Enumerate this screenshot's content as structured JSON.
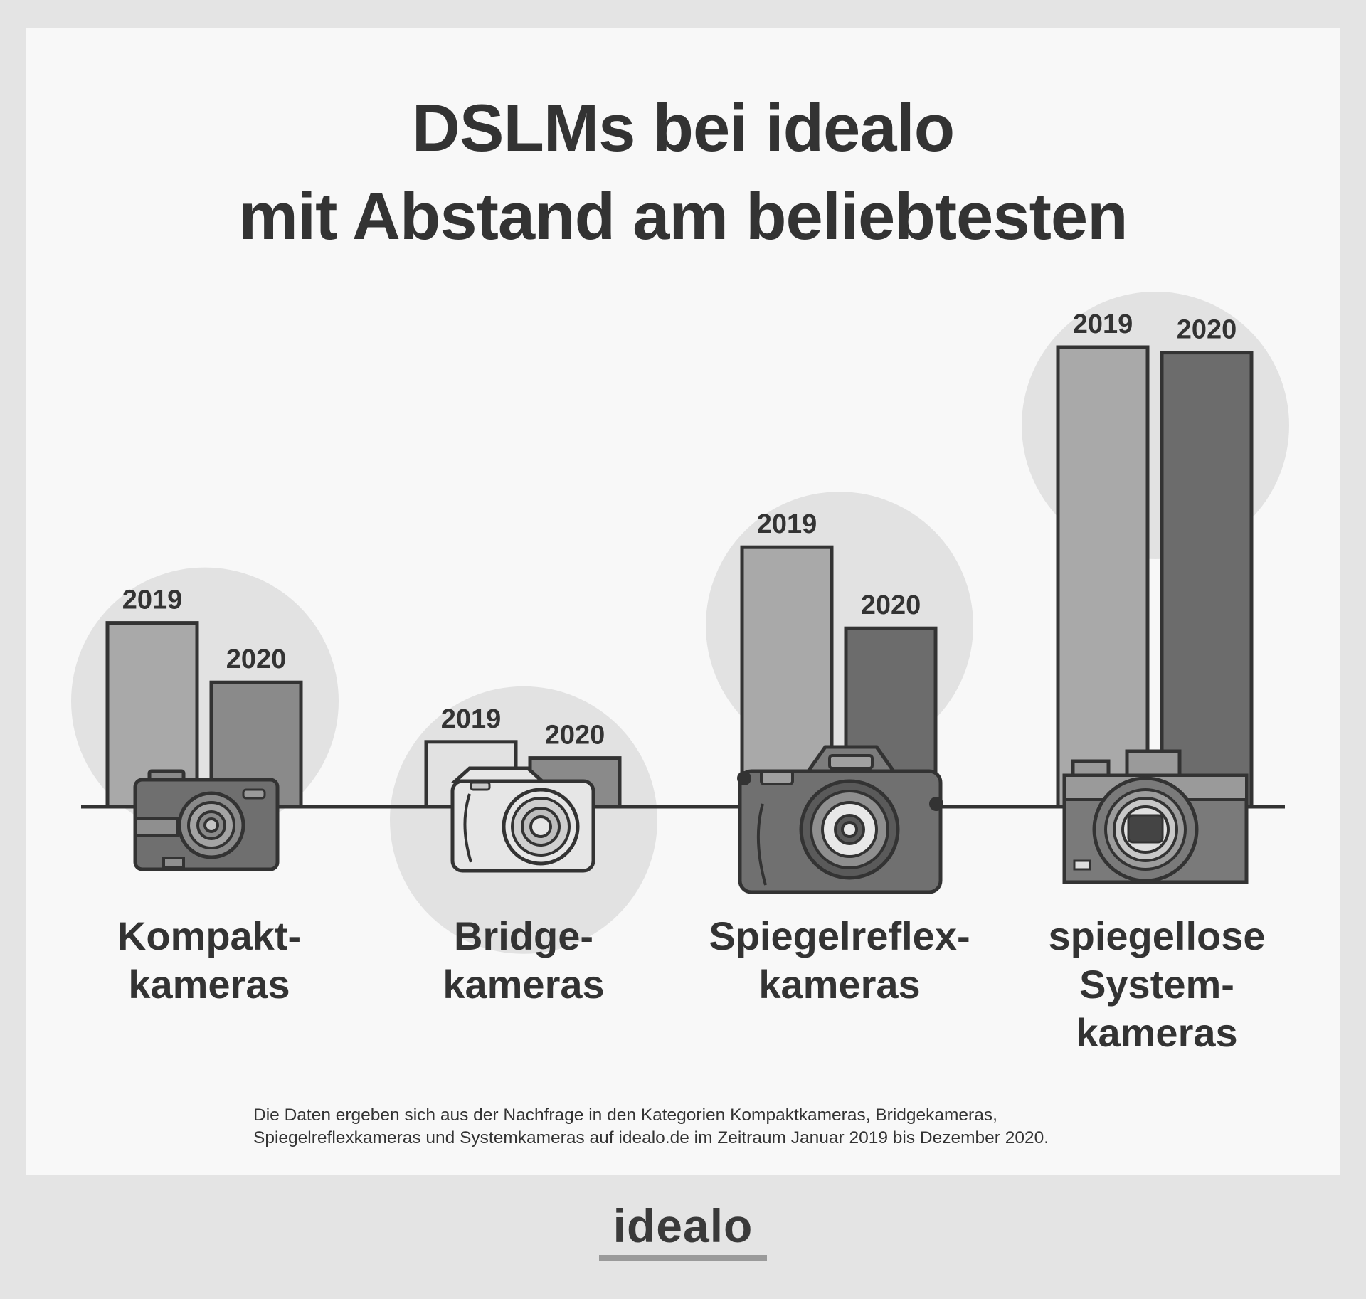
{
  "title": {
    "line1": "DSLMs bei idealo",
    "line2": "mit Abstand am beliebtesten"
  },
  "chart_data": {
    "type": "bar",
    "title": "DSLMs bei idealo mit Abstand am beliebtesten",
    "xlabel": "",
    "ylabel": "",
    "legend": "none",
    "grid": false,
    "ylim": [
      0,
      100
    ],
    "categories": [
      "Kompaktkameras",
      "Bridgekameras",
      "Spiegelreflexkameras",
      "spiegellose Systemkameras"
    ],
    "category_label_lines": [
      [
        "Kompakt-",
        "kameras"
      ],
      [
        "Bridge-",
        "kameras"
      ],
      [
        "Spiegelreflex-",
        "kameras"
      ],
      [
        "spiegellose",
        "System-",
        "kameras"
      ]
    ],
    "series": [
      {
        "name": "2019",
        "values": [
          34,
          12,
          48,
          85
        ]
      },
      {
        "name": "2020",
        "values": [
          23,
          9,
          33,
          84
        ]
      }
    ],
    "bar_labels": [
      "2019",
      "2020"
    ]
  },
  "colors": {
    "bar_2019": "#a9a9a9",
    "bar_2019_bridge": "#e2e2e2",
    "bar_2020": "#8a8a8a",
    "bar_2020_dark": "#6c6c6c",
    "circle": "#e2e2e2",
    "outline": "#333333",
    "baseline": "#333333"
  },
  "icons": [
    "compact-camera-icon",
    "bridge-camera-icon",
    "dslr-camera-icon",
    "mirrorless-camera-icon"
  ],
  "source_note": {
    "line1": "Die Daten ergeben sich aus der Nachfrage in den Kategorien Kompaktkameras, Bridgekameras,",
    "line2": "Spiegelreflexkameras und Systemkameras auf idealo.de im Zeitraum Januar 2019 bis Dezember 2020."
  },
  "logo": {
    "text": "idealo"
  }
}
